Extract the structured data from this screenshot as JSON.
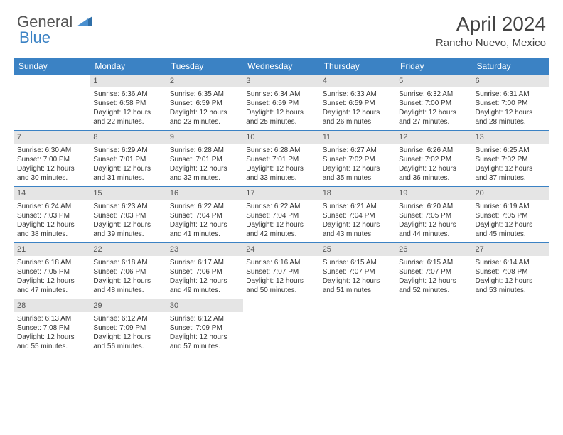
{
  "branding": {
    "logo_text_1": "General",
    "logo_text_2": "Blue",
    "logo_color_gray": "#6b6b6b",
    "logo_color_blue": "#3b82c4"
  },
  "header": {
    "month_title": "April 2024",
    "location": "Rancho Nuevo, Mexico"
  },
  "colors": {
    "header_bg": "#3b82c4",
    "header_text": "#ffffff",
    "day_num_bg": "#e5e5e5",
    "row_border": "#3b82c4",
    "text": "#333333"
  },
  "dayNames": [
    "Sunday",
    "Monday",
    "Tuesday",
    "Wednesday",
    "Thursday",
    "Friday",
    "Saturday"
  ],
  "weeks": [
    [
      null,
      {
        "n": "1",
        "sr": "Sunrise: 6:36 AM",
        "ss": "Sunset: 6:58 PM",
        "d1": "Daylight: 12 hours",
        "d2": "and 22 minutes."
      },
      {
        "n": "2",
        "sr": "Sunrise: 6:35 AM",
        "ss": "Sunset: 6:59 PM",
        "d1": "Daylight: 12 hours",
        "d2": "and 23 minutes."
      },
      {
        "n": "3",
        "sr": "Sunrise: 6:34 AM",
        "ss": "Sunset: 6:59 PM",
        "d1": "Daylight: 12 hours",
        "d2": "and 25 minutes."
      },
      {
        "n": "4",
        "sr": "Sunrise: 6:33 AM",
        "ss": "Sunset: 6:59 PM",
        "d1": "Daylight: 12 hours",
        "d2": "and 26 minutes."
      },
      {
        "n": "5",
        "sr": "Sunrise: 6:32 AM",
        "ss": "Sunset: 7:00 PM",
        "d1": "Daylight: 12 hours",
        "d2": "and 27 minutes."
      },
      {
        "n": "6",
        "sr": "Sunrise: 6:31 AM",
        "ss": "Sunset: 7:00 PM",
        "d1": "Daylight: 12 hours",
        "d2": "and 28 minutes."
      }
    ],
    [
      {
        "n": "7",
        "sr": "Sunrise: 6:30 AM",
        "ss": "Sunset: 7:00 PM",
        "d1": "Daylight: 12 hours",
        "d2": "and 30 minutes."
      },
      {
        "n": "8",
        "sr": "Sunrise: 6:29 AM",
        "ss": "Sunset: 7:01 PM",
        "d1": "Daylight: 12 hours",
        "d2": "and 31 minutes."
      },
      {
        "n": "9",
        "sr": "Sunrise: 6:28 AM",
        "ss": "Sunset: 7:01 PM",
        "d1": "Daylight: 12 hours",
        "d2": "and 32 minutes."
      },
      {
        "n": "10",
        "sr": "Sunrise: 6:28 AM",
        "ss": "Sunset: 7:01 PM",
        "d1": "Daylight: 12 hours",
        "d2": "and 33 minutes."
      },
      {
        "n": "11",
        "sr": "Sunrise: 6:27 AM",
        "ss": "Sunset: 7:02 PM",
        "d1": "Daylight: 12 hours",
        "d2": "and 35 minutes."
      },
      {
        "n": "12",
        "sr": "Sunrise: 6:26 AM",
        "ss": "Sunset: 7:02 PM",
        "d1": "Daylight: 12 hours",
        "d2": "and 36 minutes."
      },
      {
        "n": "13",
        "sr": "Sunrise: 6:25 AM",
        "ss": "Sunset: 7:02 PM",
        "d1": "Daylight: 12 hours",
        "d2": "and 37 minutes."
      }
    ],
    [
      {
        "n": "14",
        "sr": "Sunrise: 6:24 AM",
        "ss": "Sunset: 7:03 PM",
        "d1": "Daylight: 12 hours",
        "d2": "and 38 minutes."
      },
      {
        "n": "15",
        "sr": "Sunrise: 6:23 AM",
        "ss": "Sunset: 7:03 PM",
        "d1": "Daylight: 12 hours",
        "d2": "and 39 minutes."
      },
      {
        "n": "16",
        "sr": "Sunrise: 6:22 AM",
        "ss": "Sunset: 7:04 PM",
        "d1": "Daylight: 12 hours",
        "d2": "and 41 minutes."
      },
      {
        "n": "17",
        "sr": "Sunrise: 6:22 AM",
        "ss": "Sunset: 7:04 PM",
        "d1": "Daylight: 12 hours",
        "d2": "and 42 minutes."
      },
      {
        "n": "18",
        "sr": "Sunrise: 6:21 AM",
        "ss": "Sunset: 7:04 PM",
        "d1": "Daylight: 12 hours",
        "d2": "and 43 minutes."
      },
      {
        "n": "19",
        "sr": "Sunrise: 6:20 AM",
        "ss": "Sunset: 7:05 PM",
        "d1": "Daylight: 12 hours",
        "d2": "and 44 minutes."
      },
      {
        "n": "20",
        "sr": "Sunrise: 6:19 AM",
        "ss": "Sunset: 7:05 PM",
        "d1": "Daylight: 12 hours",
        "d2": "and 45 minutes."
      }
    ],
    [
      {
        "n": "21",
        "sr": "Sunrise: 6:18 AM",
        "ss": "Sunset: 7:05 PM",
        "d1": "Daylight: 12 hours",
        "d2": "and 47 minutes."
      },
      {
        "n": "22",
        "sr": "Sunrise: 6:18 AM",
        "ss": "Sunset: 7:06 PM",
        "d1": "Daylight: 12 hours",
        "d2": "and 48 minutes."
      },
      {
        "n": "23",
        "sr": "Sunrise: 6:17 AM",
        "ss": "Sunset: 7:06 PM",
        "d1": "Daylight: 12 hours",
        "d2": "and 49 minutes."
      },
      {
        "n": "24",
        "sr": "Sunrise: 6:16 AM",
        "ss": "Sunset: 7:07 PM",
        "d1": "Daylight: 12 hours",
        "d2": "and 50 minutes."
      },
      {
        "n": "25",
        "sr": "Sunrise: 6:15 AM",
        "ss": "Sunset: 7:07 PM",
        "d1": "Daylight: 12 hours",
        "d2": "and 51 minutes."
      },
      {
        "n": "26",
        "sr": "Sunrise: 6:15 AM",
        "ss": "Sunset: 7:07 PM",
        "d1": "Daylight: 12 hours",
        "d2": "and 52 minutes."
      },
      {
        "n": "27",
        "sr": "Sunrise: 6:14 AM",
        "ss": "Sunset: 7:08 PM",
        "d1": "Daylight: 12 hours",
        "d2": "and 53 minutes."
      }
    ],
    [
      {
        "n": "28",
        "sr": "Sunrise: 6:13 AM",
        "ss": "Sunset: 7:08 PM",
        "d1": "Daylight: 12 hours",
        "d2": "and 55 minutes."
      },
      {
        "n": "29",
        "sr": "Sunrise: 6:12 AM",
        "ss": "Sunset: 7:09 PM",
        "d1": "Daylight: 12 hours",
        "d2": "and 56 minutes."
      },
      {
        "n": "30",
        "sr": "Sunrise: 6:12 AM",
        "ss": "Sunset: 7:09 PM",
        "d1": "Daylight: 12 hours",
        "d2": "and 57 minutes."
      },
      null,
      null,
      null,
      null
    ]
  ]
}
